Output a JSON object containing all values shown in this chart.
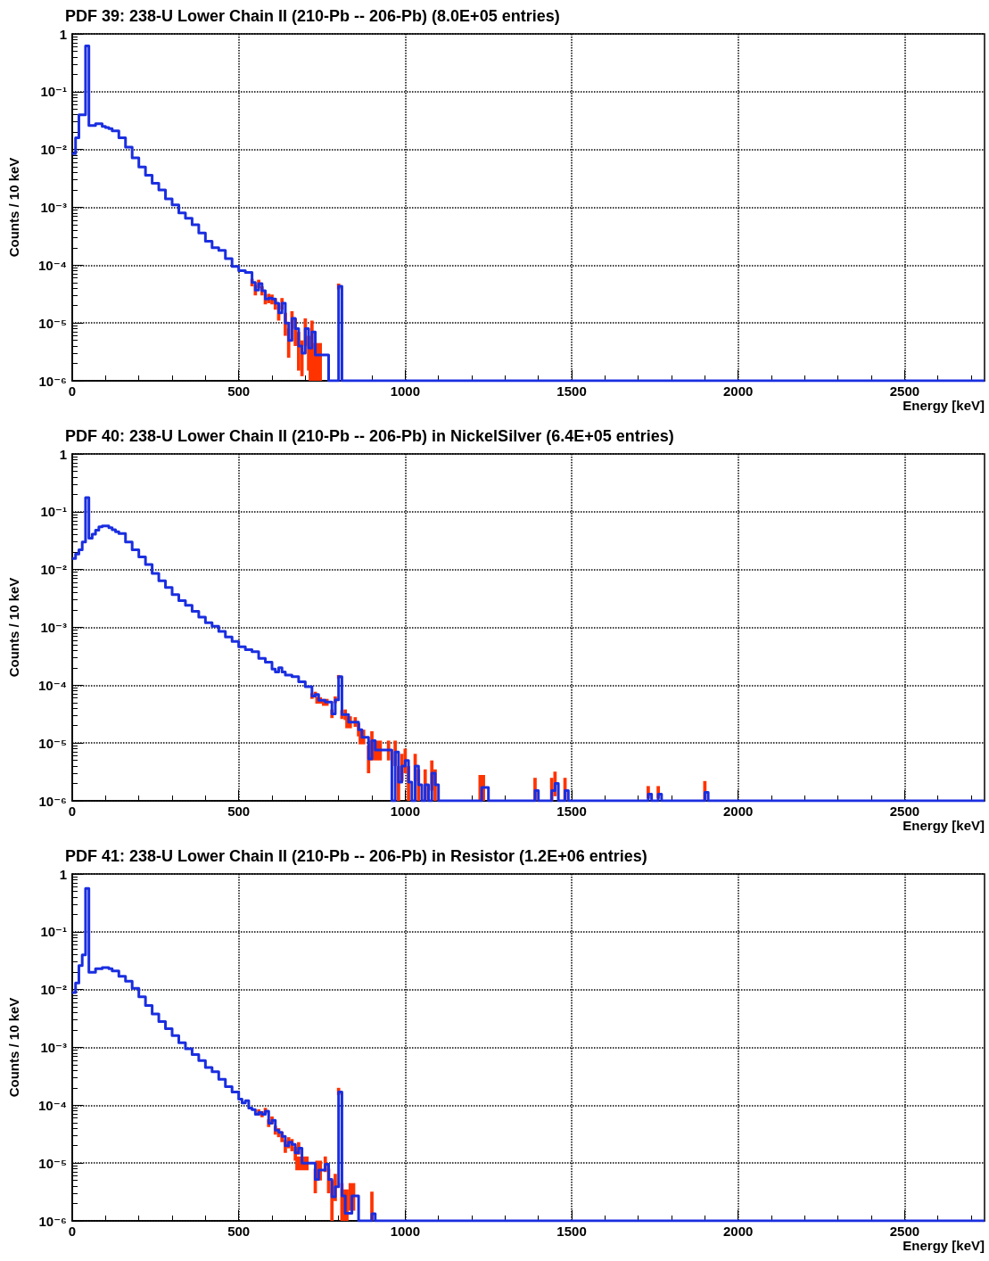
{
  "chart_data": [
    {
      "type": "step",
      "title": "PDF 39: 238-U Lower Chain II (210-Pb -- 206-Pb) (8.0E+05 entries)",
      "xlabel": "Energy [keV]",
      "ylabel": "Counts / 10 keV",
      "log": "y",
      "grid": true,
      "color": "#1a2ee0",
      "xlim": [
        0,
        2740
      ],
      "xticks": [
        0,
        500,
        1000,
        1500,
        2000,
        2500
      ],
      "ylim": [
        1e-06,
        1
      ],
      "yticks": [
        {
          "value": 1e-06,
          "label": "10⁻⁶"
        },
        {
          "value": 1e-05,
          "label": "10⁻⁵"
        },
        {
          "value": 0.0001,
          "label": "10⁻⁴"
        },
        {
          "value": 0.001,
          "label": "10⁻³"
        },
        {
          "value": 0.01,
          "label": "10⁻²"
        },
        {
          "value": 0.1,
          "label": "10⁻¹"
        },
        {
          "value": 1,
          "label": "1"
        }
      ],
      "x": [
        0,
        10,
        20,
        30,
        40,
        50,
        60,
        70,
        80,
        90,
        100,
        110,
        120,
        140,
        160,
        180,
        200,
        220,
        240,
        260,
        280,
        300,
        320,
        340,
        360,
        380,
        400,
        420,
        440,
        460,
        480,
        500,
        520,
        540,
        550,
        560,
        570,
        580,
        590,
        600,
        610,
        620,
        630,
        640,
        650,
        660,
        670,
        680,
        690,
        700,
        710,
        720,
        730,
        770,
        800,
        810,
        2740
      ],
      "values": [
        0.0085,
        0.016,
        0.04,
        0.04,
        0.62,
        0.026,
        0.026,
        0.028,
        0.028,
        0.025,
        0.024,
        0.023,
        0.021,
        0.016,
        0.011,
        0.0072,
        0.005,
        0.0036,
        0.0026,
        0.002,
        0.0014,
        0.0011,
        0.0008,
        0.00065,
        0.0005,
        0.00036,
        0.00026,
        0.0002,
        0.00018,
        0.00013,
        9.5e-05,
        8e-05,
        7.5e-05,
        5e-05,
        3.7e-05,
        4.8e-05,
        3.6e-05,
        2.6e-05,
        2.7e-05,
        2.6e-05,
        2.2e-05,
        1.5e-05,
        2.2e-05,
        1e-05,
        5e-06,
        1.2e-05,
        8e-06,
        4e-06,
        3e-06,
        8e-06,
        3.7e-06,
        7e-06,
        2.8e-06,
        1e-06,
        4.3e-05,
        1e-06,
        1e-06
      ],
      "errors": [
        null,
        null,
        null,
        null,
        null,
        null,
        null,
        null,
        null,
        null,
        null,
        null,
        null,
        null,
        null,
        null,
        null,
        null,
        null,
        null,
        null,
        null,
        null,
        null,
        null,
        null,
        null,
        null,
        null,
        null,
        null,
        null,
        null,
        [
          4.3e-05,
          5.8e-05
        ],
        [
          3e-05,
          4.5e-05
        ],
        [
          4e-05,
          5.6e-05
        ],
        [
          3e-05,
          4.3e-05
        ],
        [
          2.1e-05,
          3.1e-05
        ],
        [
          2.2e-05,
          3.2e-05
        ],
        [
          2.1e-05,
          3.1e-05
        ],
        [
          1.7e-05,
          2.7e-05
        ],
        [
          1.1e-05,
          2e-05
        ],
        [
          1.7e-05,
          2.7e-05
        ],
        [
          6e-06,
          1.5e-05
        ],
        [
          2.5e-06,
          8e-06
        ],
        [
          8e-06,
          1.6e-05
        ],
        [
          4e-06,
          1.2e-05
        ],
        [
          1.5e-06,
          7e-06
        ],
        [
          1.2e-06,
          5e-06
        ],
        [
          4e-06,
          1.2e-05
        ],
        [
          1.5e-06,
          6e-06
        ],
        [
          3e-06,
          1.1e-05
        ],
        [
          1e-06,
          4.5e-06
        ],
        null,
        [
          3.8e-05,
          4.8e-05
        ],
        null,
        null
      ]
    },
    {
      "type": "step",
      "title": "PDF 40: 238-U Lower Chain II (210-Pb -- 206-Pb) in NickelSilver (6.4E+05 entries)",
      "xlabel": "Energy [keV]",
      "ylabel": "Counts / 10 keV",
      "log": "y",
      "grid": true,
      "color": "#1a2ee0",
      "xlim": [
        0,
        2740
      ],
      "xticks": [
        0,
        500,
        1000,
        1500,
        2000,
        2500
      ],
      "ylim": [
        1e-06,
        1
      ],
      "yticks": [
        {
          "value": 1e-06,
          "label": "10⁻⁶"
        },
        {
          "value": 1e-05,
          "label": "10⁻⁵"
        },
        {
          "value": 0.0001,
          "label": "10⁻⁴"
        },
        {
          "value": 0.001,
          "label": "10⁻³"
        },
        {
          "value": 0.01,
          "label": "10⁻²"
        },
        {
          "value": 0.1,
          "label": "10⁻¹"
        },
        {
          "value": 1,
          "label": "1"
        }
      ],
      "x": [
        0,
        10,
        20,
        30,
        40,
        50,
        60,
        70,
        80,
        90,
        100,
        110,
        120,
        130,
        140,
        160,
        180,
        200,
        220,
        240,
        260,
        280,
        300,
        320,
        340,
        360,
        380,
        400,
        420,
        440,
        460,
        480,
        500,
        520,
        540,
        560,
        580,
        600,
        610,
        620,
        630,
        640,
        660,
        680,
        700,
        720,
        730,
        740,
        760,
        780,
        790,
        800,
        810,
        820,
        830,
        850,
        860,
        870,
        890,
        900,
        910,
        950,
        960,
        970,
        980,
        990,
        1000,
        1010,
        1020,
        1030,
        1040,
        1050,
        1060,
        1070,
        1080,
        1090,
        1100,
        1230,
        1250,
        1390,
        1400,
        1440,
        1450,
        1460,
        1480,
        1490,
        1730,
        1740,
        1760,
        1770,
        1900,
        1910,
        2740
      ],
      "values": [
        0.0155,
        0.0185,
        0.022,
        0.03,
        0.175,
        0.035,
        0.041,
        0.048,
        0.055,
        0.057,
        0.057,
        0.053,
        0.049,
        0.045,
        0.042,
        0.03,
        0.022,
        0.0165,
        0.0122,
        0.0086,
        0.0064,
        0.0049,
        0.0037,
        0.0029,
        0.0024,
        0.0019,
        0.0015,
        0.0012,
        0.00105,
        0.00085,
        0.00068,
        0.00057,
        0.00046,
        0.00041,
        0.00038,
        0.00029,
        0.00025,
        0.00019,
        0.00017,
        0.0002,
        0.00017,
        0.00015,
        0.00014,
        0.000115,
        9.4e-05,
        6.5e-05,
        6.9e-05,
        5.5e-05,
        5.1e-05,
        3.2e-05,
        5.6e-05,
        0.00014,
        3.1e-05,
        3.1e-05,
        2.3e-05,
        2.3e-05,
        1.7e-05,
        1.26e-05,
        5.3e-06,
        1.1e-05,
        7.6e-06,
        7.6e-06,
        1e-06,
        7e-06,
        2.1e-06,
        4e-06,
        5e-06,
        2.1e-06,
        1e-06,
        4e-06,
        1.9e-06,
        1e-06,
        1.9e-06,
        1e-06,
        3e-06,
        1.9e-06,
        1e-06,
        1.7e-06,
        1e-06,
        1.5e-06,
        1e-06,
        1.5e-06,
        2e-06,
        1e-06,
        1.5e-06,
        1e-06,
        1.3e-06,
        1e-06,
        1.3e-06,
        1e-06,
        1.4e-06,
        1e-06,
        1e-06
      ],
      "errors": [
        null,
        null,
        null,
        null,
        null,
        null,
        null,
        null,
        null,
        null,
        null,
        null,
        null,
        null,
        null,
        null,
        null,
        null,
        null,
        null,
        null,
        null,
        null,
        null,
        null,
        null,
        null,
        null,
        null,
        null,
        null,
        null,
        null,
        null,
        null,
        null,
        null,
        null,
        null,
        null,
        null,
        null,
        null,
        null,
        null,
        [
          5.8e-05,
          7.3e-05
        ],
        [
          6.1e-05,
          7.7e-05
        ],
        [
          4.8e-05,
          6.2e-05
        ],
        [
          4.4e-05,
          5.8e-05
        ],
        [
          2.7e-05,
          3.8e-05
        ],
        [
          4.9e-05,
          6.4e-05
        ],
        [
          0.00013,
          0.00015
        ],
        [
          2.6e-05,
          3.7e-05
        ],
        [
          2.5e-05,
          3.8e-05
        ],
        [
          1.8e-05,
          2.9e-05
        ],
        [
          1.9e-05,
          2.8e-05
        ],
        [
          1.3e-05,
          2.2e-05
        ],
        [
          9.5e-06,
          1.7e-05
        ],
        [
          3e-06,
          9e-06
        ],
        [
          7e-06,
          1.6e-05
        ],
        [
          5e-06,
          1.1e-05
        ],
        [
          5e-06,
          1.1e-05
        ],
        null,
        [
          4e-06,
          1.1e-05
        ],
        [
          1e-06,
          4e-06
        ],
        [
          2.2e-06,
          6.5e-06
        ],
        [
          3e-06,
          8e-06
        ],
        [
          1e-06,
          4e-06
        ],
        null,
        [
          2.2e-06,
          6.5e-06
        ],
        [
          1e-06,
          3.5e-06
        ],
        null,
        [
          1e-06,
          3.5e-06
        ],
        null,
        [
          1.5e-06,
          5e-06
        ],
        [
          1e-06,
          3.5e-06
        ],
        null,
        [
          1e-06,
          2.8e-06
        ],
        null,
        [
          1e-06,
          2.5e-06
        ],
        null,
        [
          1e-06,
          2.5e-06
        ],
        [
          1.2e-06,
          3.2e-06
        ],
        null,
        [
          1e-06,
          2.5e-06
        ],
        null,
        [
          1.1e-06,
          1.8e-06
        ],
        null,
        [
          1.1e-06,
          1.8e-06
        ],
        null,
        [
          1e-06,
          2.2e-06
        ],
        null,
        null
      ]
    },
    {
      "type": "step",
      "title": "PDF 41: 238-U Lower Chain II (210-Pb -- 206-Pb) in Resistor (1.2E+06 entries)",
      "xlabel": "Energy [keV]",
      "ylabel": "Counts / 10 keV",
      "log": "y",
      "grid": true,
      "color": "#1a2ee0",
      "xlim": [
        0,
        2740
      ],
      "xticks": [
        0,
        500,
        1000,
        1500,
        2000,
        2500
      ],
      "ylim": [
        1e-06,
        1
      ],
      "yticks": [
        {
          "value": 1e-06,
          "label": "10⁻⁶"
        },
        {
          "value": 1e-05,
          "label": "10⁻⁵"
        },
        {
          "value": 0.0001,
          "label": "10⁻⁴"
        },
        {
          "value": 0.001,
          "label": "10⁻³"
        },
        {
          "value": 0.01,
          "label": "10⁻²"
        },
        {
          "value": 0.1,
          "label": "10⁻¹"
        },
        {
          "value": 1,
          "label": "1"
        }
      ],
      "x": [
        0,
        10,
        20,
        30,
        40,
        50,
        60,
        70,
        80,
        90,
        100,
        110,
        120,
        140,
        160,
        180,
        200,
        220,
        240,
        260,
        280,
        300,
        320,
        340,
        360,
        380,
        400,
        420,
        440,
        460,
        480,
        500,
        510,
        520,
        530,
        540,
        550,
        560,
        570,
        580,
        590,
        600,
        610,
        620,
        630,
        640,
        650,
        660,
        670,
        680,
        690,
        730,
        740,
        760,
        770,
        780,
        790,
        800,
        810,
        820,
        840,
        860,
        900,
        910,
        2740
      ],
      "values": [
        0.0089,
        0.013,
        0.026,
        0.04,
        0.56,
        0.02,
        0.02,
        0.023,
        0.023,
        0.024,
        0.024,
        0.023,
        0.021,
        0.017,
        0.014,
        0.0105,
        0.0075,
        0.0053,
        0.0038,
        0.0028,
        0.0021,
        0.0016,
        0.0012,
        0.00095,
        0.00075,
        0.00059,
        0.00045,
        0.00038,
        0.00028,
        0.00021,
        0.00017,
        0.000127,
        0.00011,
        0.00012,
        8.9e-05,
        8.4e-05,
        7e-05,
        7.5e-05,
        7e-05,
        7.9e-05,
        4.9e-05,
        5.5e-05,
        3.7e-05,
        3.4e-05,
        2.9e-05,
        2e-05,
        2.3e-05,
        2.1e-05,
        1.5e-05,
        1.8e-05,
        1e-05,
        5.2e-06,
        7.6e-06,
        9.5e-06,
        5.2e-06,
        2.6e-06,
        3.9e-06,
        0.00017,
        2.7e-06,
        1.35e-06,
        2.7e-06,
        1e-06,
        1.33e-06,
        1e-06,
        1e-06
      ],
      "errors": [
        null,
        null,
        null,
        null,
        null,
        null,
        null,
        null,
        null,
        null,
        null,
        null,
        null,
        null,
        null,
        null,
        null,
        null,
        null,
        null,
        null,
        null,
        null,
        null,
        null,
        null,
        null,
        null,
        null,
        null,
        null,
        null,
        null,
        null,
        null,
        null,
        null,
        [
          6.6e-05,
          8.5e-05
        ],
        [
          6.2e-05,
          7.9e-05
        ],
        [
          7e-05,
          9e-05
        ],
        [
          4.2e-05,
          5.7e-05
        ],
        [
          4.7e-05,
          6.4e-05
        ],
        [
          3.1e-05,
          4.4e-05
        ],
        [
          2.8e-05,
          4e-05
        ],
        [
          2.3e-05,
          3.5e-05
        ],
        [
          1.5e-05,
          2.5e-05
        ],
        [
          1.8e-05,
          2.8e-05
        ],
        [
          1.6e-05,
          2.6e-05
        ],
        [
          1.1e-05,
          1.9e-05
        ],
        [
          1.4e-05,
          2.3e-05
        ],
        [
          7.5e-06,
          1.3e-05
        ],
        [
          3e-06,
          8e-06
        ],
        [
          5e-06,
          1.1e-05
        ],
        [
          7e-06,
          1.3e-05
        ],
        [
          3e-06,
          8e-06
        ],
        [
          1e-06,
          5e-06
        ],
        [
          2.2e-06,
          6.5e-06
        ],
        [
          0.00015,
          0.0002
        ],
        [
          1e-06,
          4.5e-06
        ],
        [
          1e-06,
          3.5e-06
        ],
        [
          1.5e-06,
          4.5e-06
        ],
        null,
        [
          1e-06,
          3.2e-06
        ],
        null,
        null
      ]
    }
  ]
}
